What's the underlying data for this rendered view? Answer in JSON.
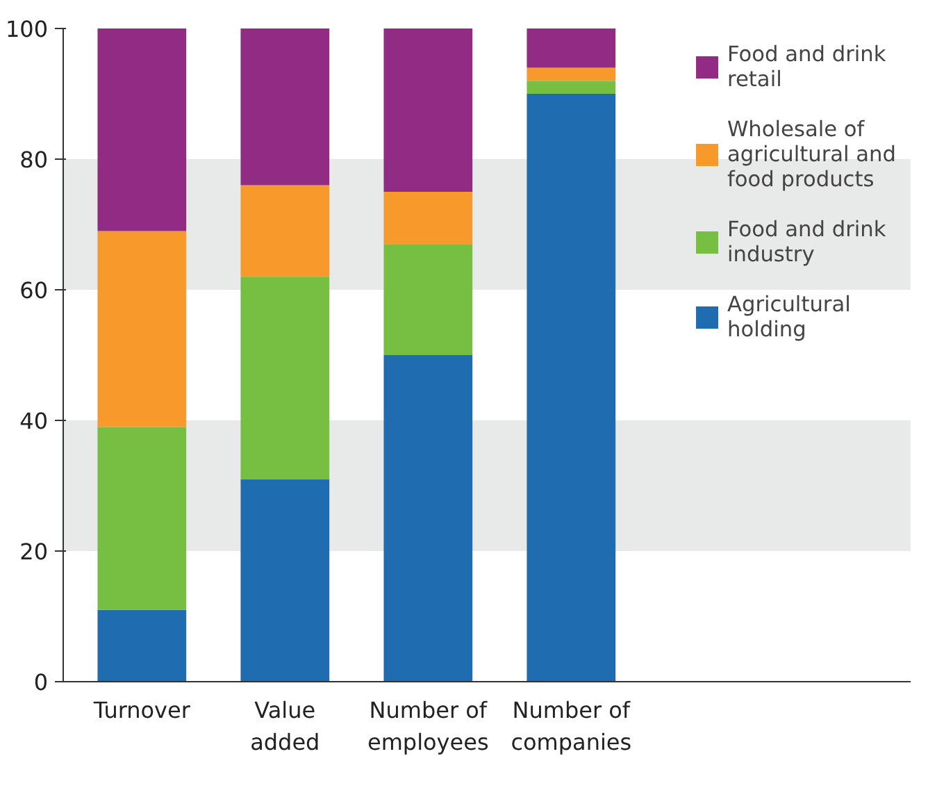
{
  "chart_data": {
    "type": "bar",
    "stacked": true,
    "categories": [
      "Turnover",
      "Value added",
      "Number of employees",
      "Number of companies"
    ],
    "series": [
      {
        "name": "Agricultural holding",
        "color": "#1f6cb0",
        "values": [
          11,
          31,
          50,
          90
        ]
      },
      {
        "name": "Food and drink industry",
        "color": "#76bf43",
        "values": [
          28,
          31,
          17,
          2
        ]
      },
      {
        "name": "Wholesale of agricultural and food products",
        "color": "#f7992b",
        "values": [
          30,
          14,
          8,
          2
        ]
      },
      {
        "name": "Food and drink retail",
        "color": "#922b84",
        "values": [
          31,
          24,
          25,
          6
        ]
      }
    ],
    "ylim": [
      0,
      100
    ],
    "yticks": [
      0,
      20,
      40,
      60,
      80,
      100
    ],
    "grid": false,
    "legend": "right",
    "bands": [
      {
        "axis": "y",
        "from": 20,
        "to": 40,
        "color": "#e8e9e9"
      },
      {
        "axis": "y",
        "from": 60,
        "to": 80,
        "color": "#e8e9e9"
      }
    ]
  }
}
